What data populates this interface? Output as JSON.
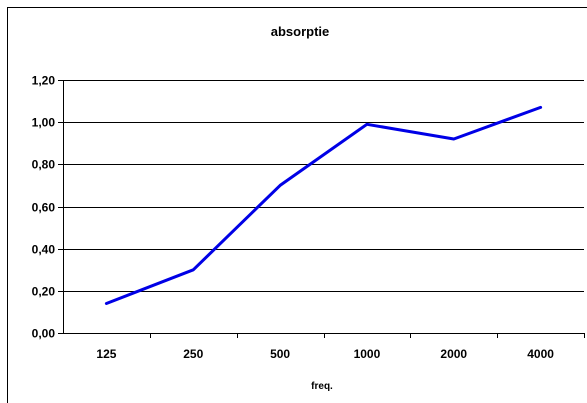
{
  "chart_data": {
    "type": "line",
    "title": "absorptie",
    "xlabel": "freq.",
    "ylabel": "",
    "categories": [
      "125",
      "250",
      "500",
      "1000",
      "2000",
      "4000"
    ],
    "series": [
      {
        "values": [
          0.14,
          0.3,
          0.7,
          0.99,
          0.92,
          1.07
        ],
        "color": "#0000e6"
      }
    ],
    "ylim": [
      0,
      1.2
    ],
    "yticks": [
      "0,00",
      "0,20",
      "0,40",
      "0,60",
      "0,80",
      "1,00",
      "1,20"
    ],
    "grid": true,
    "legend": "none"
  }
}
